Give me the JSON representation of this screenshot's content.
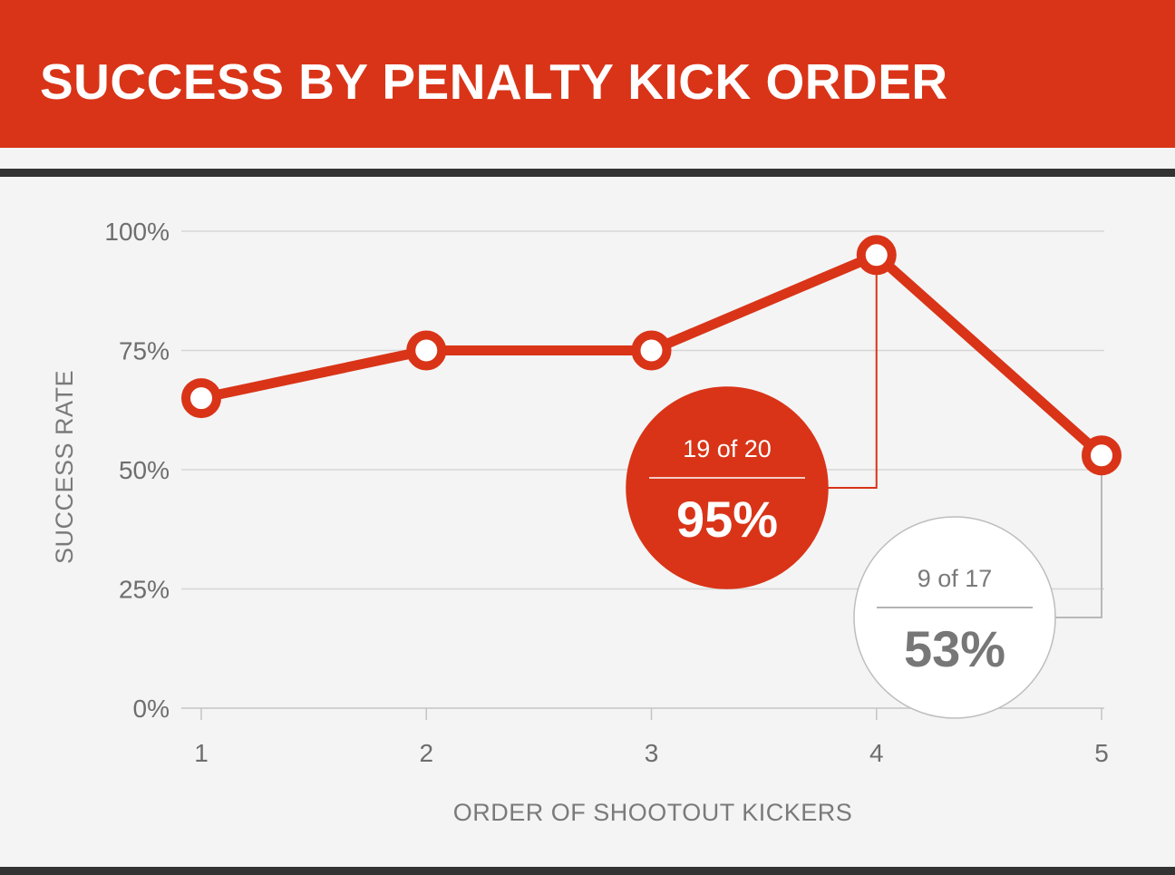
{
  "title": "SUCCESS BY PENALTY KICK ORDER",
  "colors": {
    "accent": "#d93418",
    "grid": "#d6d6d6",
    "background": "#f4f4f4",
    "text": "#6e6e6e",
    "muted": "#b8b8b8"
  },
  "chart_data": {
    "type": "line",
    "xlabel": "ORDER OF SHOOTOUT KICKERS",
    "ylabel": "SUCCESS RATE",
    "x": [
      1,
      2,
      3,
      4,
      5
    ],
    "x_tick_labels": [
      "1",
      "2",
      "3",
      "4",
      "5"
    ],
    "ylim": [
      0,
      100
    ],
    "y_ticks": [
      0,
      25,
      50,
      75,
      100
    ],
    "y_tick_labels": [
      "0%",
      "25%",
      "50%",
      "75%",
      "100%"
    ],
    "grid": true,
    "series": [
      {
        "values": [
          65,
          75,
          75,
          95,
          53
        ]
      }
    ],
    "annotations": [
      {
        "x": 4,
        "count_text": "19 of 20",
        "value_text": "95%",
        "style": "filled"
      },
      {
        "x": 5,
        "count_text": "9 of 17",
        "value_text": "53%",
        "style": "outline"
      }
    ]
  }
}
